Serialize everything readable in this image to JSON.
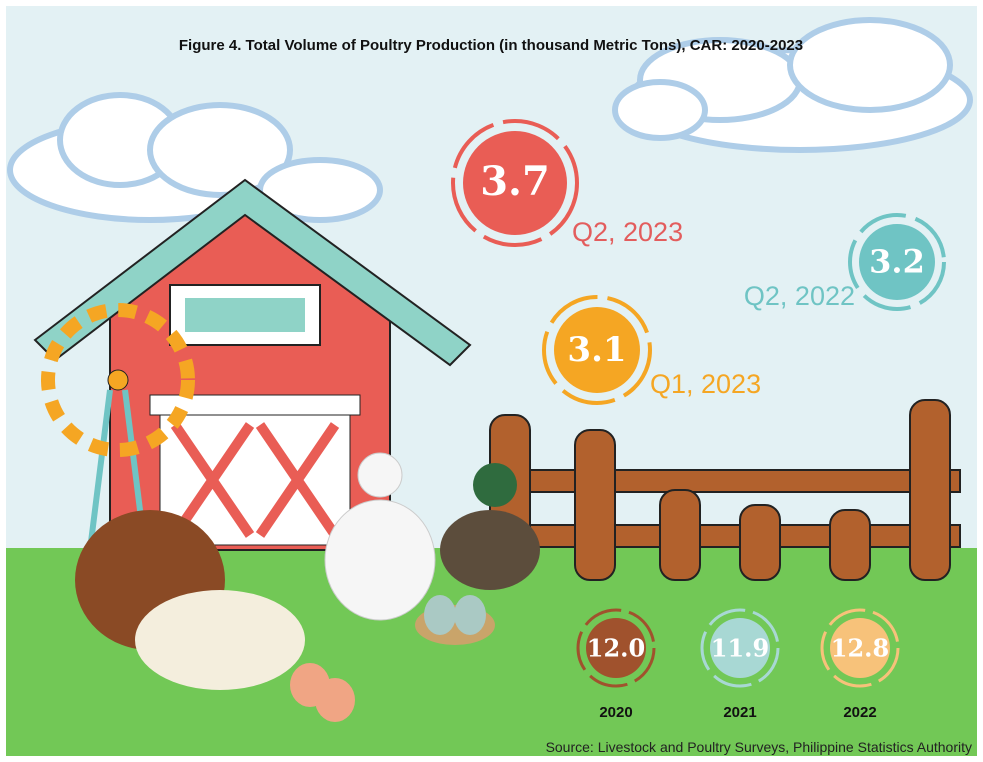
{
  "header": {
    "title": "Figure 4. Total Volume of Poultry Production (in thousand Metric Tons), CAR: 2020-2023"
  },
  "quarterly": [
    {
      "value": "3.7",
      "period": "Q2, 2023"
    },
    {
      "value": "3.2",
      "period": "Q2, 2022"
    },
    {
      "value": "3.1",
      "period": "Q1, 2023"
    }
  ],
  "annual": [
    {
      "value": "12.0",
      "year": "2020"
    },
    {
      "value": "11.9",
      "year": "2021"
    },
    {
      "value": "12.8",
      "year": "2022"
    }
  ],
  "footer": {
    "source": "Source: Livestock and Poultry Surveys, Philippine Statistics Authority"
  }
}
